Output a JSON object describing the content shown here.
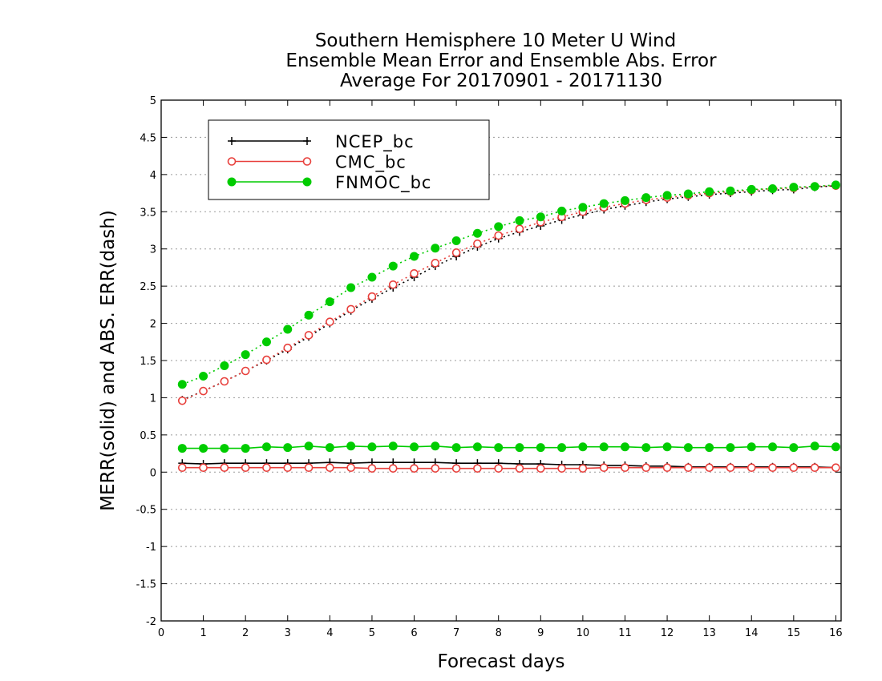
{
  "colors": {
    "ncep": "#000000",
    "cmc": "#e8403c",
    "fnmoc": "#00cc00"
  },
  "chart_data": {
    "type": "line",
    "title": [
      "Southern Hemisphere 10 Meter U Wind",
      "Ensemble Mean Error and Ensemble Abs. Error",
      "Average For 20170901 - 20171130"
    ],
    "xlabel": "Forecast days",
    "ylabel": "MERR(solid) and ABS. ERR(dash)",
    "xlim": [
      0,
      16.125
    ],
    "ylim": [
      -2,
      5
    ],
    "xticks": [
      "0",
      "1",
      "2",
      "3",
      "4",
      "5",
      "6",
      "7",
      "8",
      "9",
      "10",
      "11",
      "12",
      "13",
      "14",
      "15",
      "16"
    ],
    "yticks": [
      "-2",
      "-1.5",
      "-1",
      "-0.5",
      "0",
      "0.5",
      "1",
      "1.5",
      "2",
      "2.5",
      "3",
      "3.5",
      "4",
      "4.5",
      "5"
    ],
    "grid": "horizontal dotted",
    "legend_position": "top-left",
    "x": [
      0.5,
      1,
      1.5,
      2,
      2.5,
      3,
      3.5,
      4,
      4.5,
      5,
      5.5,
      6,
      6.5,
      7,
      7.5,
      8,
      8.5,
      9,
      9.5,
      10,
      10.5,
      11,
      11.5,
      12,
      12.5,
      13,
      13.5,
      14,
      14.5,
      15,
      15.5,
      16
    ],
    "series": [
      {
        "name": "NCEP_bc",
        "color_key": "ncep",
        "marker": "plus",
        "merr": [
          0.12,
          0.11,
          0.12,
          0.12,
          0.12,
          0.12,
          0.12,
          0.13,
          0.12,
          0.13,
          0.13,
          0.13,
          0.13,
          0.12,
          0.12,
          0.12,
          0.11,
          0.11,
          0.1,
          0.1,
          0.09,
          0.09,
          0.08,
          0.08,
          0.07,
          0.07,
          0.07,
          0.07,
          0.07,
          0.07,
          0.07,
          0.06
        ],
        "abs": [
          0.97,
          1.09,
          1.22,
          1.36,
          1.5,
          1.65,
          1.82,
          2.0,
          2.17,
          2.33,
          2.48,
          2.62,
          2.77,
          2.9,
          3.03,
          3.14,
          3.23,
          3.31,
          3.39,
          3.46,
          3.53,
          3.58,
          3.63,
          3.67,
          3.7,
          3.73,
          3.75,
          3.77,
          3.79,
          3.8,
          3.83,
          3.85
        ]
      },
      {
        "name": "CMC_bc",
        "color_key": "cmc",
        "marker": "open-circle",
        "merr": [
          0.06,
          0.06,
          0.06,
          0.06,
          0.06,
          0.06,
          0.06,
          0.06,
          0.06,
          0.05,
          0.05,
          0.05,
          0.05,
          0.05,
          0.05,
          0.05,
          0.05,
          0.05,
          0.05,
          0.05,
          0.06,
          0.06,
          0.06,
          0.06,
          0.06,
          0.06,
          0.06,
          0.06,
          0.06,
          0.06,
          0.06,
          0.06
        ],
        "abs": [
          0.96,
          1.09,
          1.22,
          1.36,
          1.51,
          1.67,
          1.84,
          2.02,
          2.19,
          2.36,
          2.52,
          2.67,
          2.81,
          2.95,
          3.07,
          3.18,
          3.27,
          3.36,
          3.43,
          3.5,
          3.56,
          3.61,
          3.66,
          3.69,
          3.72,
          3.75,
          3.77,
          3.79,
          3.81,
          3.82,
          3.84,
          3.85
        ]
      },
      {
        "name": "FNMOC_bc",
        "color_key": "fnmoc",
        "marker": "filled-circle",
        "merr": [
          0.32,
          0.32,
          0.32,
          0.32,
          0.34,
          0.33,
          0.35,
          0.33,
          0.35,
          0.34,
          0.35,
          0.34,
          0.35,
          0.33,
          0.34,
          0.33,
          0.33,
          0.33,
          0.33,
          0.34,
          0.34,
          0.34,
          0.33,
          0.34,
          0.33,
          0.33,
          0.33,
          0.34,
          0.34,
          0.33,
          0.35,
          0.34
        ],
        "abs": [
          1.18,
          1.29,
          1.43,
          1.58,
          1.75,
          1.92,
          2.11,
          2.29,
          2.48,
          2.62,
          2.77,
          2.9,
          3.01,
          3.11,
          3.21,
          3.3,
          3.38,
          3.43,
          3.51,
          3.56,
          3.61,
          3.65,
          3.69,
          3.72,
          3.74,
          3.77,
          3.78,
          3.8,
          3.81,
          3.83,
          3.84,
          3.86
        ]
      }
    ]
  }
}
